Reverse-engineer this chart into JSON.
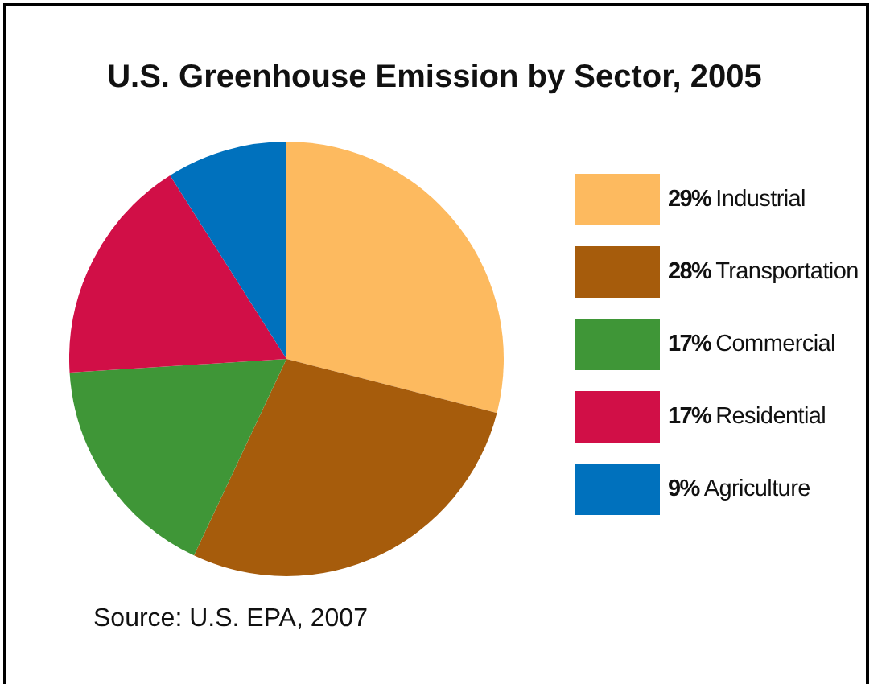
{
  "chart_data": {
    "type": "pie",
    "title": "U.S. Greenhouse Emission by Sector, 2005",
    "categories": [
      "Industrial",
      "Transportation",
      "Commercial",
      "Residential",
      "Agriculture"
    ],
    "values": [
      29,
      28,
      17,
      17,
      9
    ],
    "value_labels": [
      "29%",
      "28%",
      "17%",
      "17%",
      "9%"
    ],
    "colors": [
      "#fdba5f",
      "#a65c0c",
      "#3f9637",
      "#d10f47",
      "#0071bd"
    ],
    "legend": "right",
    "annotations": [
      "Source: U.S. EPA, 2007"
    ]
  }
}
